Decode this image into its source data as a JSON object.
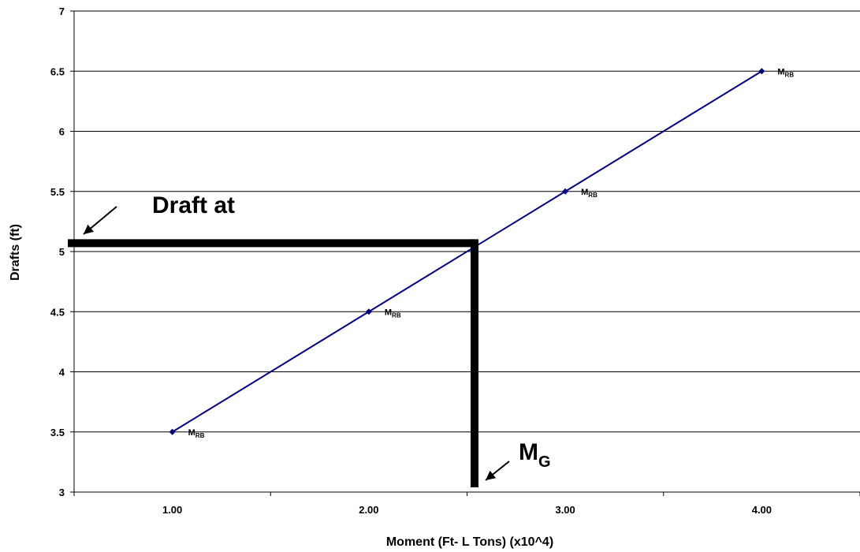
{
  "chart_data": {
    "type": "line",
    "title": "",
    "xlabel": "Moment (Ft- L Tons) (x10^4)",
    "ylabel": "Drafts (ft)",
    "xlim": [
      0.5,
      4.5
    ],
    "ylim": [
      3,
      7
    ],
    "x_tick_labels": [
      "1.00",
      "2.00",
      "3.00",
      "4.00"
    ],
    "x_tick_values": [
      1,
      2,
      3,
      4
    ],
    "x_minor_ticks": [
      0.5,
      1.5,
      2.5,
      3.5,
      4.5
    ],
    "y_tick_labels": [
      "3",
      "3.5",
      "4",
      "4.5",
      "5",
      "5.5",
      "6",
      "6.5",
      "7"
    ],
    "y_tick_values": [
      3,
      3.5,
      4,
      4.5,
      5,
      5.5,
      6,
      6.5,
      7
    ],
    "grid": {
      "horizontal": true,
      "vertical": false
    },
    "series": [
      {
        "color": "#000080",
        "marker": "diamond",
        "x": [
          1.0,
          2.0,
          3.0,
          4.0
        ],
        "y": [
          3.5,
          4.5,
          5.5,
          6.5
        ],
        "point_labels": [
          {
            "main": "M",
            "sub": "RB"
          },
          {
            "main": "M",
            "sub": "RB"
          },
          {
            "main": "M",
            "sub": "RB"
          },
          {
            "main": "M",
            "sub": "RB"
          }
        ]
      }
    ],
    "annotations": {
      "draft_text": "Draft at",
      "mg_main": "M",
      "mg_sub": "G",
      "draft_value": 5.07,
      "mg_value": 2.53,
      "line_color": "#000000"
    }
  }
}
